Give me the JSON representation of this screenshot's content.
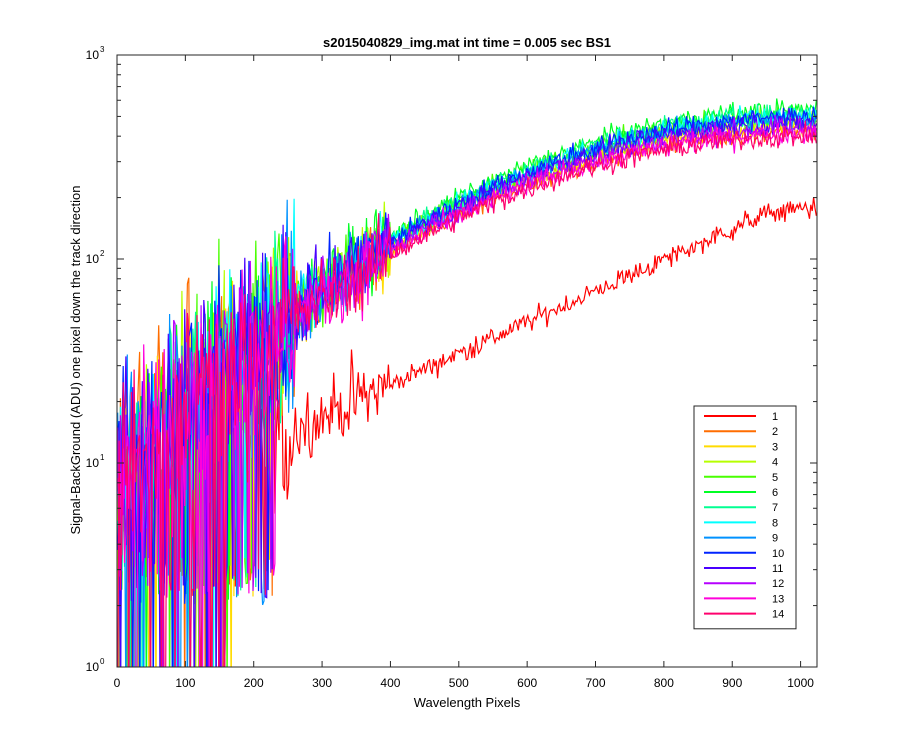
{
  "chart_data": {
    "type": "line",
    "title": "s2015040829_img.mat int time = 0.005 sec   BS1",
    "xlabel": "Wavelength Pixels",
    "ylabel": "Signal-BackGround (ADU) one pixel down the track direction",
    "xlim": [
      0,
      1024
    ],
    "ylim": [
      1,
      1000
    ],
    "yscale": "log",
    "x_ticks": [
      0,
      100,
      200,
      300,
      400,
      500,
      600,
      700,
      800,
      900,
      1000
    ],
    "y_ticks": [
      {
        "value": 1,
        "base": "10",
        "exp": "0"
      },
      {
        "value": 10,
        "base": "10",
        "exp": "1"
      },
      {
        "value": 100,
        "base": "10",
        "exp": "2"
      },
      {
        "value": 1000,
        "base": "10",
        "exp": "3"
      }
    ],
    "legend_position": "bottom-right",
    "series": [
      {
        "name": "1",
        "color": "#ff0000",
        "final_value": 200
      },
      {
        "name": "2",
        "color": "#ff6d00",
        "final_value": 430
      },
      {
        "name": "3",
        "color": "#ffdb00",
        "final_value": 455
      },
      {
        "name": "4",
        "color": "#b6ff00",
        "final_value": 480
      },
      {
        "name": "5",
        "color": "#49ff00",
        "final_value": 505
      },
      {
        "name": "6",
        "color": "#00ff24",
        "final_value": 540
      },
      {
        "name": "7",
        "color": "#00ff92",
        "final_value": 515
      },
      {
        "name": "8",
        "color": "#00ffff",
        "final_value": 500
      },
      {
        "name": "9",
        "color": "#0092ff",
        "final_value": 490
      },
      {
        "name": "10",
        "color": "#0024ff",
        "final_value": 500
      },
      {
        "name": "11",
        "color": "#4900ff",
        "final_value": 470
      },
      {
        "name": "12",
        "color": "#b600ff",
        "final_value": 440
      },
      {
        "name": "13",
        "color": "#ff00db",
        "final_value": 415
      },
      {
        "name": "14",
        "color": "#ff006d",
        "final_value": 400
      }
    ]
  }
}
